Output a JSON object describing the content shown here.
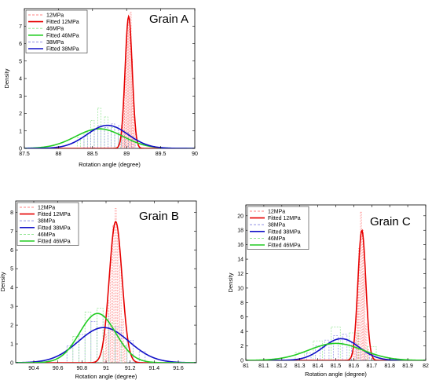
{
  "figure": {
    "panels": [
      "grain-a",
      "grain-b",
      "grain-c"
    ]
  },
  "chart_data": [
    {
      "id": "grain-a",
      "type": "line",
      "title": "Grain A",
      "xlabel": "Rotation angle (degree)",
      "ylabel": "Density",
      "xlim": [
        87.5,
        90
      ],
      "ylim": [
        0,
        8
      ],
      "xticks": [
        87.5,
        88,
        88.5,
        89,
        89.5,
        90
      ],
      "xtick_labels": [
        "87.5",
        "88",
        "88.5",
        "89",
        "89.5",
        "90"
      ],
      "yticks": [
        0,
        1,
        2,
        3,
        4,
        5,
        6,
        7
      ],
      "ytick_labels": [
        "0",
        "1",
        "2",
        "3",
        "4",
        "5",
        "6",
        "7"
      ],
      "grid": false,
      "legend_position": "top-left",
      "legend": [
        {
          "label": "12MPa",
          "color": "#ff8080",
          "style": "dashed"
        },
        {
          "label": "Fitted 12MPa",
          "color": "#e60000",
          "style": "solid"
        },
        {
          "label": "46MPa",
          "color": "#80e080",
          "style": "dashed"
        },
        {
          "label": "Fitted 46MPa",
          "color": "#22cc22",
          "style": "solid"
        },
        {
          "label": "38MPa",
          "color": "#8080e0",
          "style": "dashed"
        },
        {
          "label": "Fitted 38MPa",
          "color": "#1010c8",
          "style": "solid"
        }
      ],
      "series": [
        {
          "name": "Fitted 12MPa",
          "kind": "normal",
          "mu": 89.03,
          "sigma": 0.052,
          "amp": 7.55,
          "color": "#e60000"
        },
        {
          "name": "Fitted 46MPa",
          "kind": "normal",
          "mu": 88.6,
          "sigma": 0.35,
          "amp": 1.12,
          "color": "#22cc22"
        },
        {
          "name": "Fitted 38MPa",
          "kind": "normal",
          "mu": 88.72,
          "sigma": 0.3,
          "amp": 1.32,
          "color": "#1010c8"
        }
      ],
      "histograms": [
        {
          "name": "12MPa",
          "color": "#ff8080",
          "x": [
            88.92,
            88.94,
            88.96,
            88.98,
            89.0,
            89.02,
            89.04,
            89.06,
            89.08,
            89.1,
            89.12
          ],
          "y": [
            0.5,
            1.2,
            2.6,
            4.1,
            6.2,
            7.2,
            6.8,
            7.8,
            5.1,
            2.7,
            1.1
          ]
        },
        {
          "name": "46MPa",
          "color": "#80e080",
          "x": [
            88.3,
            88.4,
            88.5,
            88.6,
            88.7,
            88.8,
            88.9,
            89.0
          ],
          "y": [
            0.6,
            0.9,
            1.6,
            2.3,
            1.8,
            1.2,
            0.9,
            0.6
          ]
        },
        {
          "name": "38MPa",
          "color": "#8080e0",
          "x": [
            88.4,
            88.5,
            88.6,
            88.7,
            88.8,
            88.9,
            89.0,
            89.1
          ],
          "y": [
            0.7,
            1.0,
            1.3,
            1.2,
            1.4,
            1.3,
            0.9,
            0.5
          ]
        }
      ]
    },
    {
      "id": "grain-b",
      "type": "line",
      "title": "Grain B",
      "xlabel": "Rotation angle (degree)",
      "ylabel": "Density",
      "xlim": [
        90.25,
        91.75
      ],
      "ylim": [
        0,
        8.6
      ],
      "xticks": [
        90.4,
        90.6,
        90.8,
        91,
        91.2,
        91.4,
        91.6
      ],
      "xtick_labels": [
        "90.4",
        "90.6",
        "90.8",
        "91",
        "91.2",
        "91.4",
        "91.6"
      ],
      "yticks": [
        0,
        1,
        2,
        3,
        4,
        5,
        6,
        7,
        8
      ],
      "ytick_labels": [
        "0",
        "1",
        "2",
        "3",
        "4",
        "5",
        "6",
        "7",
        "8"
      ],
      "grid": false,
      "legend_position": "top-left",
      "legend": [
        {
          "label": "12MPa",
          "color": "#ff8080",
          "style": "dashed"
        },
        {
          "label": "Fitted 12MPa",
          "color": "#e60000",
          "style": "solid"
        },
        {
          "label": "38MPa",
          "color": "#8080e0",
          "style": "dashed"
        },
        {
          "label": "Fitted 38MPa",
          "color": "#1010c8",
          "style": "solid"
        },
        {
          "label": "46MPa",
          "color": "#80e080",
          "style": "dashed"
        },
        {
          "label": "Fitted 46MPa",
          "color": "#22cc22",
          "style": "solid"
        }
      ],
      "series": [
        {
          "name": "Fitted 12MPa",
          "kind": "normal",
          "mu": 91.08,
          "sigma": 0.053,
          "amp": 7.5,
          "color": "#e60000"
        },
        {
          "name": "Fitted 38MPa",
          "kind": "normal",
          "mu": 90.98,
          "sigma": 0.21,
          "amp": 1.87,
          "color": "#1010c8"
        },
        {
          "name": "Fitted 46MPa",
          "kind": "normal",
          "mu": 90.93,
          "sigma": 0.15,
          "amp": 2.62,
          "color": "#22cc22"
        }
      ],
      "histograms": [
        {
          "name": "12MPa",
          "color": "#ff8080",
          "x": [
            90.98,
            91.0,
            91.02,
            91.04,
            91.06,
            91.08,
            91.1,
            91.12,
            91.14,
            91.16
          ],
          "y": [
            0.6,
            1.5,
            3.3,
            5.6,
            7.3,
            8.2,
            6.9,
            5.2,
            2.3,
            0.9
          ]
        },
        {
          "name": "38MPa",
          "color": "#8080e0",
          "x": [
            90.7,
            90.8,
            90.9,
            91.0,
            91.1,
            91.2,
            91.3
          ],
          "y": [
            0.9,
            1.5,
            2.2,
            2.5,
            1.9,
            1.2,
            0.6
          ]
        },
        {
          "name": "46MPa",
          "color": "#80e080",
          "x": [
            90.75,
            90.85,
            90.95,
            91.05,
            91.15
          ],
          "y": [
            1.4,
            2.7,
            2.9,
            2.1,
            0.9
          ]
        }
      ]
    },
    {
      "id": "grain-c",
      "type": "line",
      "title": "Grain C",
      "xlabel": "Rotation angle (degree)",
      "ylabel": "Density",
      "xlim": [
        81,
        82
      ],
      "ylim": [
        0,
        21.5
      ],
      "xticks": [
        81,
        81.1,
        81.2,
        81.3,
        81.4,
        81.5,
        81.6,
        81.7,
        81.8,
        81.9,
        82
      ],
      "xtick_labels": [
        "81",
        "81.1",
        "81.2",
        "81.3",
        "81.4",
        "81.5",
        "81.6",
        "81.7",
        "81.8",
        "81.9",
        "82"
      ],
      "yticks": [
        0,
        2,
        4,
        6,
        8,
        10,
        12,
        14,
        16,
        18,
        20
      ],
      "ytick_labels": [
        "0",
        "2",
        "4",
        "6",
        "8",
        "10",
        "12",
        "14",
        "16",
        "18",
        "20"
      ],
      "grid": false,
      "legend_position": "top-left",
      "legend": [
        {
          "label": "12MPa",
          "color": "#ff8080",
          "style": "dashed"
        },
        {
          "label": "Fitted 12MPa",
          "color": "#e60000",
          "style": "solid"
        },
        {
          "label": "38MPa",
          "color": "#8080e0",
          "style": "dashed"
        },
        {
          "label": "Fitted 38MPa",
          "color": "#1010c8",
          "style": "solid"
        },
        {
          "label": "46MPa",
          "color": "#80e080",
          "style": "dashed"
        },
        {
          "label": "Fitted 46MPa",
          "color": "#22cc22",
          "style": "solid"
        }
      ],
      "series": [
        {
          "name": "Fitted 12MPa",
          "kind": "normal",
          "mu": 81.645,
          "sigma": 0.022,
          "amp": 18.0,
          "color": "#e60000"
        },
        {
          "name": "Fitted 38MPa",
          "kind": "normal",
          "mu": 81.53,
          "sigma": 0.1,
          "amp": 3.0,
          "color": "#1010c8"
        },
        {
          "name": "Fitted 46MPa",
          "kind": "normal",
          "mu": 81.5,
          "sigma": 0.15,
          "amp": 2.35,
          "color": "#22cc22"
        }
      ],
      "histograms": [
        {
          "name": "12MPa",
          "color": "#ff8080",
          "x": [
            81.6,
            81.61,
            81.62,
            81.63,
            81.64,
            81.65,
            81.66,
            81.67,
            81.68
          ],
          "y": [
            1.2,
            3.5,
            9.0,
            15.5,
            20.5,
            18.0,
            12.0,
            5.0,
            1.5
          ]
        },
        {
          "name": "38MPa",
          "color": "#8080e0",
          "x": [
            81.35,
            81.4,
            81.45,
            81.5,
            81.55,
            81.6,
            81.65,
            81.7
          ],
          "y": [
            1.0,
            2.0,
            2.8,
            3.4,
            3.6,
            2.5,
            1.5,
            0.8
          ]
        },
        {
          "name": "46MPa",
          "color": "#80e080",
          "x": [
            81.3,
            81.4,
            81.5,
            81.6,
            81.7
          ],
          "y": [
            1.1,
            2.7,
            4.6,
            3.8,
            1.9
          ]
        }
      ]
    }
  ]
}
